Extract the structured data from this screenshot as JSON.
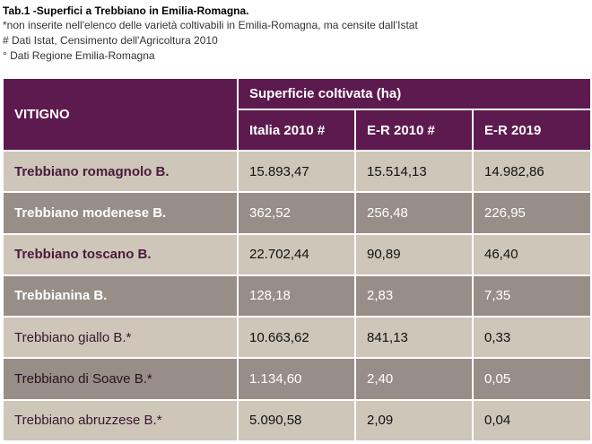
{
  "caption": {
    "title": "Tab.1 -Superfici a Trebbiano in Emilia-Romagna.",
    "notes": [
      "*non inserite nell'elenco delle varietà coltivabili in Emilia-Romagna, ma censite dall'Istat",
      "# Dati Istat, Censimento dell'Agricoltura 2010",
      "° Dati Regione Emilia-Romagna"
    ]
  },
  "table": {
    "row_header": "VITIGNO",
    "group_header": "Superficie coltivata (ha)",
    "columns": [
      "Italia 2010 #",
      "E-R 2010 #",
      "E-R 2019"
    ],
    "rows": [
      {
        "name": "Trebbiano romagnolo B.",
        "values": [
          "15.893,47",
          "15.514,13",
          "14.982,86"
        ]
      },
      {
        "name": "Trebbiano modenese B.",
        "values": [
          "362,52",
          "256,48",
          "226,95"
        ]
      },
      {
        "name": "Trebbiano toscano B.",
        "values": [
          "22.702,44",
          "90,89",
          "46,40"
        ]
      },
      {
        "name": "Trebbianina B.",
        "values": [
          "128,18",
          "2,83",
          "7,35"
        ]
      },
      {
        "name": "Trebbiano giallo B.*",
        "values": [
          "10.663,62",
          "841,13",
          "0,33"
        ]
      },
      {
        "name": "Trebbiano di Soave B.*",
        "values": [
          "1.134,60",
          "2,40",
          "0,05"
        ]
      },
      {
        "name": "Trebbiano abruzzese B.*",
        "values": [
          "5.090,58",
          "2,09",
          "0,04"
        ]
      }
    ]
  },
  "colors": {
    "header_bg": "#5d1a4e",
    "row_light": "#cec6b8",
    "row_dark": "#978e87"
  }
}
